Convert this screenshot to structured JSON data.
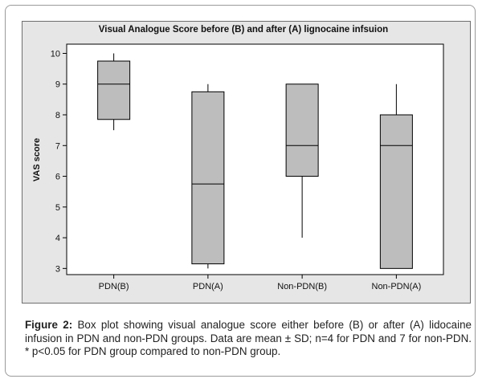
{
  "chart_data": {
    "type": "box",
    "title": "Visual Analogue Score before (B) and after (A) lignocaine infsuion",
    "xlabel": "",
    "ylabel": "VAS score",
    "ylim": [
      2.8,
      10.3
    ],
    "yticks": [
      3,
      4,
      5,
      6,
      7,
      8,
      9,
      10
    ],
    "grid": false,
    "categories": [
      "PDN(B)",
      "PDN(A)",
      "Non-PDN(B)",
      "Non-PDN(A)"
    ],
    "boxes": [
      {
        "category": "PDN(B)",
        "whisker_low": 7.5,
        "q1": 7.85,
        "median": 9.0,
        "q3": 9.75,
        "whisker_high": 10.0
      },
      {
        "category": "PDN(A)",
        "whisker_low": 3.0,
        "q1": 3.15,
        "median": 5.75,
        "q3": 8.75,
        "whisker_high": 9.0
      },
      {
        "category": "Non-PDN(B)",
        "whisker_low": 4.0,
        "q1": 6.0,
        "median": 7.0,
        "q3": 9.0,
        "whisker_high": 9.0
      },
      {
        "category": "Non-PDN(A)",
        "whisker_low": 3.0,
        "q1": 3.0,
        "median": 7.0,
        "q3": 8.0,
        "whisker_high": 9.0
      }
    ],
    "colors": {
      "box_fill": "#bdbdbd",
      "plot_bg": "#ffffff",
      "outer_bg": "#e6e6e6",
      "stroke": "#000000"
    }
  },
  "caption": {
    "label": "Figure 2:",
    "text": " Box plot showing visual analogue score either before (B) or after (A) lidocaine infusion in PDN and non-PDN groups. Data are mean ± SD; n=4 for PDN and 7 for non-PDN. * p<0.05 for PDN group compared to non-PDN group."
  }
}
